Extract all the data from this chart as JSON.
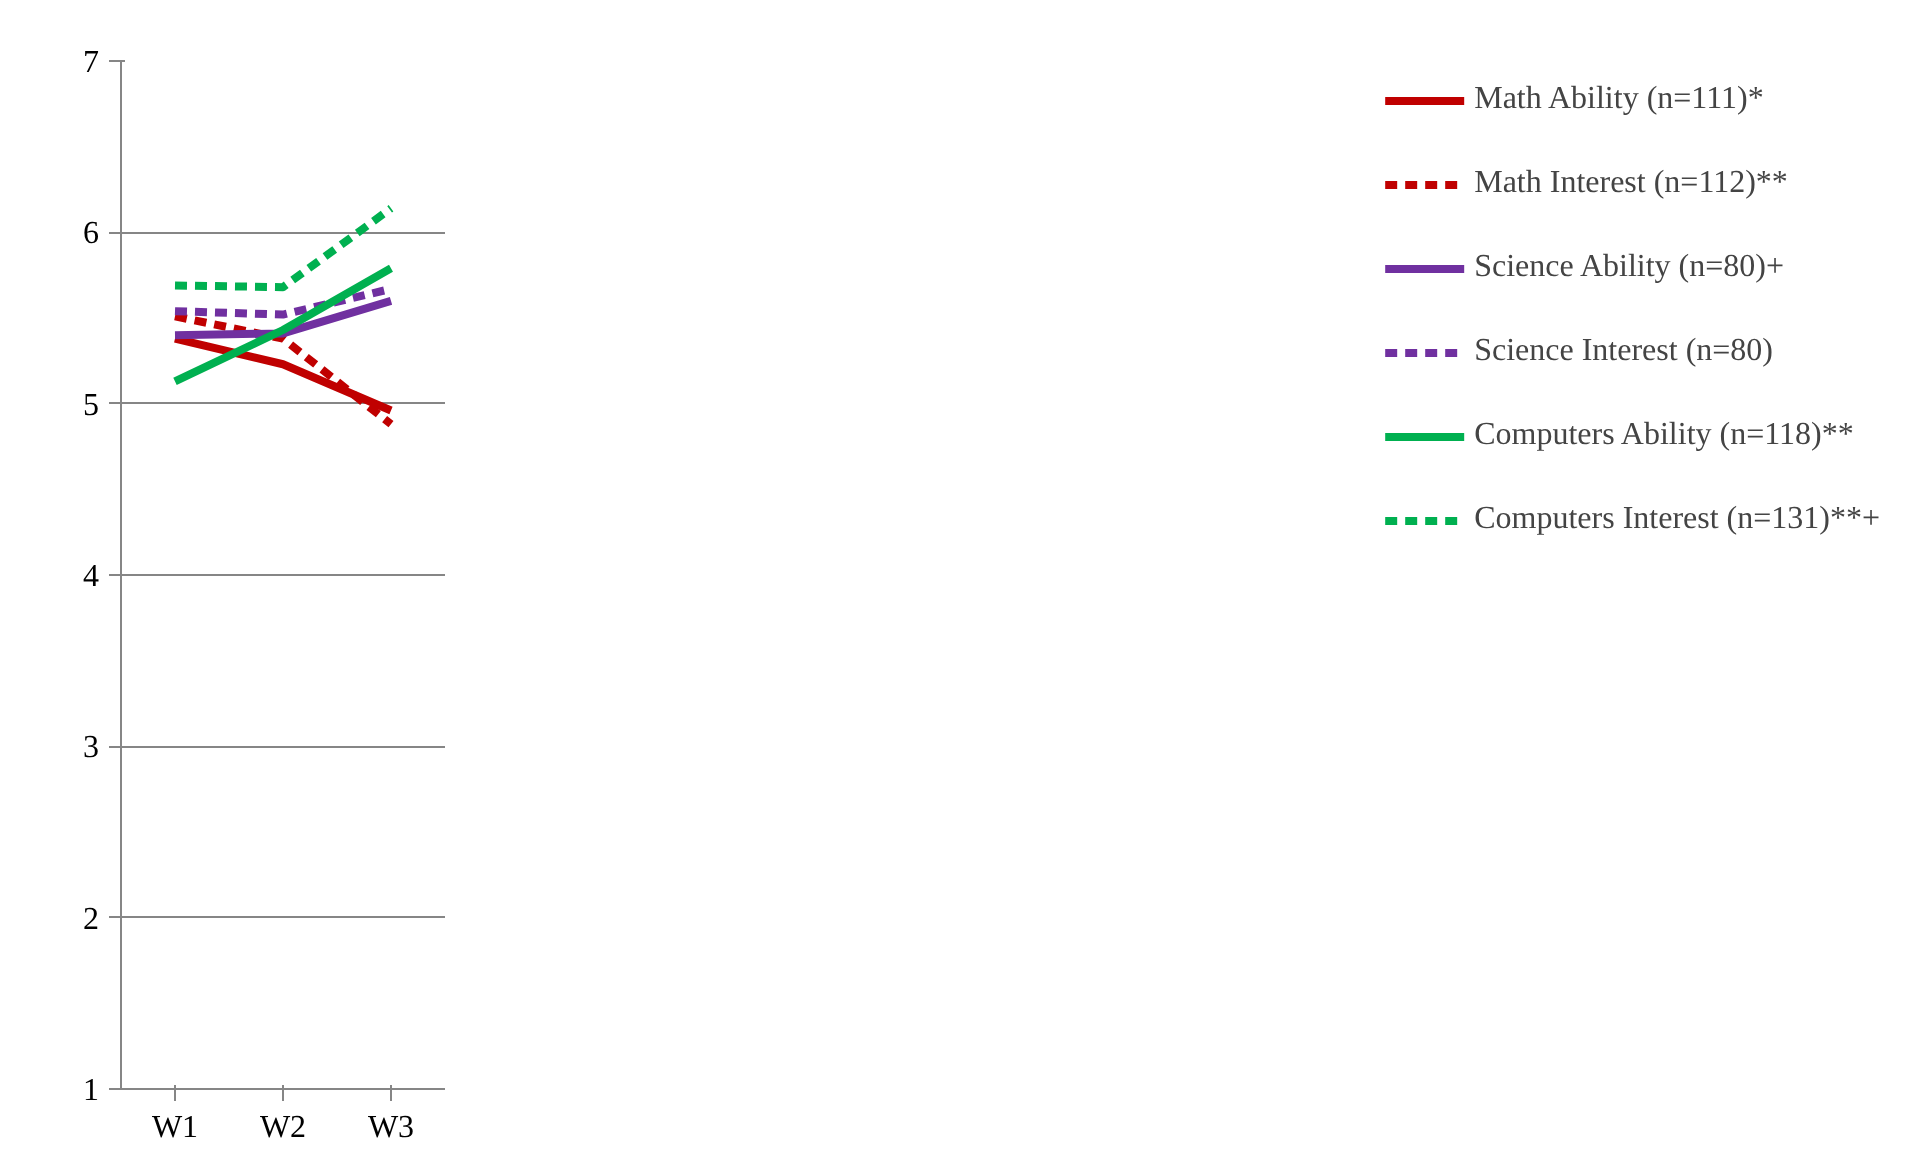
{
  "chart_data": {
    "type": "line",
    "categories": [
      "W1",
      "W2",
      "W3"
    ],
    "ylim": [
      1,
      7
    ],
    "yticks": [
      1,
      2,
      3,
      4,
      5,
      6,
      7
    ],
    "grid": "y",
    "legend": "right",
    "series": [
      {
        "name": "Math Ability (n=111)*",
        "color": "#c00000",
        "line_style": "solid",
        "values": [
          5.38,
          5.23,
          4.96
        ]
      },
      {
        "name": "Math Interest (n=112)**",
        "color": "#c00000",
        "line_style": "dashed",
        "values": [
          5.51,
          5.38,
          4.88
        ]
      },
      {
        "name": "Science Ability (n=80)+",
        "color": "#7030a0",
        "line_style": "solid",
        "values": [
          5.4,
          5.41,
          5.6
        ]
      },
      {
        "name": "Science Interest (n=80)",
        "color": "#7030a0",
        "line_style": "dashed",
        "values": [
          5.54,
          5.52,
          5.67
        ]
      },
      {
        "name": "Computers Ability (n=118)**",
        "color": "#00b050",
        "line_style": "solid",
        "values": [
          5.13,
          5.43,
          5.79
        ]
      },
      {
        "name": "Computers Interest (n=131)**+",
        "color": "#00b050",
        "line_style": "dashed",
        "values": [
          5.69,
          5.68,
          6.14
        ]
      }
    ]
  }
}
